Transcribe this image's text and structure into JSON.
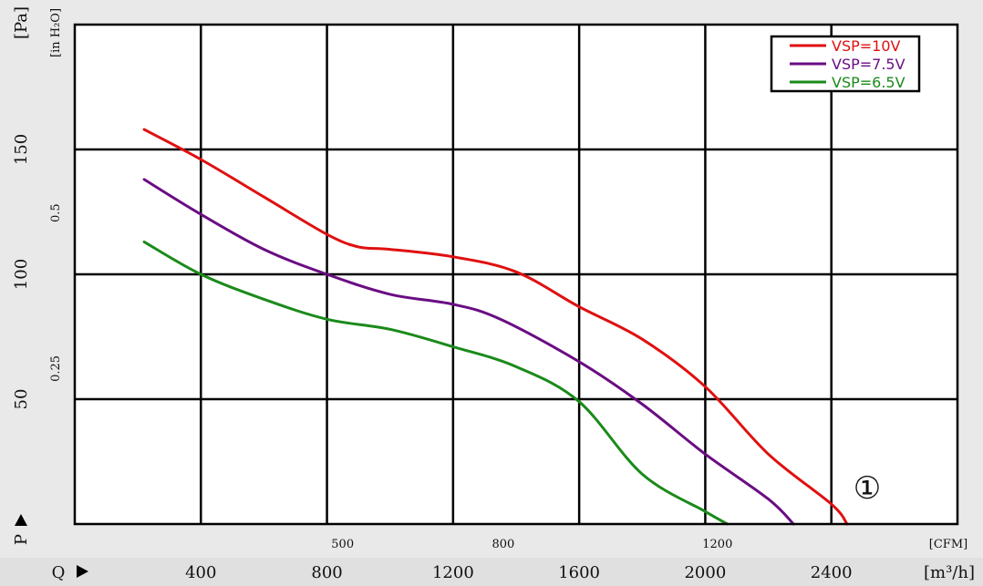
{
  "chart_data": {
    "type": "line",
    "y_primary_unit": "[Pa]",
    "y_primary_axis_label": "P",
    "y_primary_ticks": [
      "50",
      "100",
      "150"
    ],
    "y_primary_tick_values": [
      50,
      100,
      150
    ],
    "y_primary_range": [
      0,
      200
    ],
    "y_secondary_unit": "[in H₂O]",
    "y_secondary_ticks": [
      "0.25",
      "0.5"
    ],
    "y_secondary_tick_values": [
      0.25,
      0.5
    ],
    "x_primary_unit": "[m³/h]",
    "x_primary_axis_label": "Q",
    "x_primary_ticks": [
      "400",
      "800",
      "1200",
      "1600",
      "2000",
      "2400"
    ],
    "x_primary_tick_values": [
      400,
      800,
      1200,
      1600,
      2000,
      2400
    ],
    "x_primary_range": [
      0,
      2800
    ],
    "x_secondary_unit": "[CFM]",
    "x_secondary_ticks": [
      "500",
      "800",
      "1200"
    ],
    "x_secondary_tick_values": [
      500,
      800,
      1200
    ],
    "grid": true,
    "legend_position": "top-right",
    "series": [
      {
        "name": "VSP=10V",
        "color": "#e01010",
        "points": [
          [
            220,
            158
          ],
          [
            400,
            146
          ],
          [
            600,
            131
          ],
          [
            800,
            116
          ],
          [
            900,
            111
          ],
          [
            1000,
            110
          ],
          [
            1200,
            107
          ],
          [
            1400,
            101
          ],
          [
            1600,
            87
          ],
          [
            1800,
            74
          ],
          [
            2000,
            55
          ],
          [
            2200,
            28
          ],
          [
            2400,
            8
          ],
          [
            2450,
            0
          ]
        ]
      },
      {
        "name": "VSP=7.5V",
        "color": "#6a0d83",
        "points": [
          [
            220,
            138
          ],
          [
            400,
            124
          ],
          [
            600,
            110
          ],
          [
            800,
            100
          ],
          [
            1000,
            92
          ],
          [
            1200,
            88
          ],
          [
            1350,
            82
          ],
          [
            1600,
            65
          ],
          [
            1800,
            48
          ],
          [
            2000,
            28
          ],
          [
            2200,
            10
          ],
          [
            2280,
            0
          ]
        ]
      },
      {
        "name": "VSP=6.5V",
        "color": "#1a8a1a",
        "points": [
          [
            220,
            113
          ],
          [
            400,
            100
          ],
          [
            600,
            90
          ],
          [
            800,
            82
          ],
          [
            1000,
            78
          ],
          [
            1200,
            71
          ],
          [
            1400,
            63
          ],
          [
            1600,
            49
          ],
          [
            1800,
            20
          ],
          [
            2000,
            5
          ],
          [
            2070,
            0
          ]
        ]
      }
    ],
    "annotation": "①"
  }
}
